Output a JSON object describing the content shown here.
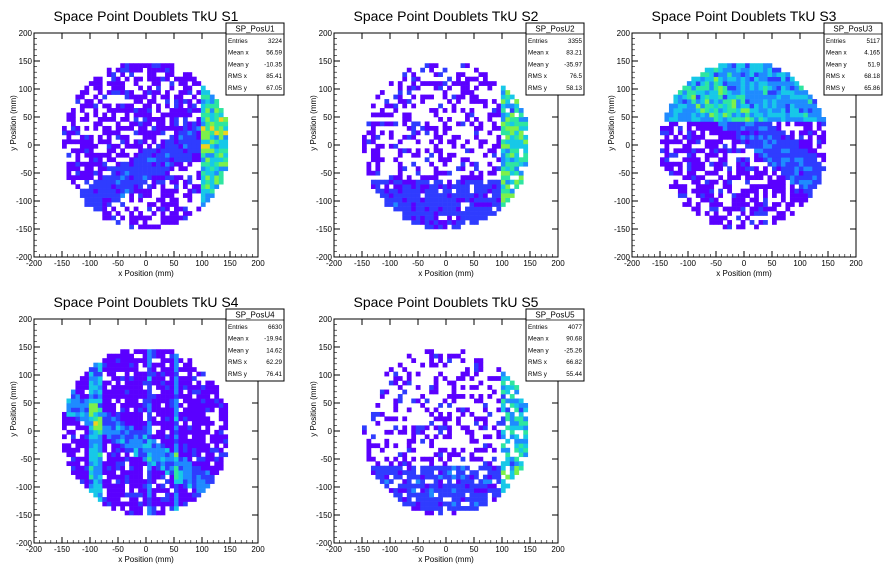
{
  "chart_data": [
    {
      "type": "heatmap",
      "title": "Space Point Doublets TkU S1",
      "xlabel": "x Position (mm)",
      "ylabel": "y Position (mm)",
      "xlim": [
        -200,
        200
      ],
      "ylim": [
        -200,
        200
      ],
      "xticks": [
        -200,
        -150,
        -100,
        -50,
        0,
        50,
        100,
        150,
        200
      ],
      "yticks": [
        -200,
        -150,
        -100,
        -50,
        0,
        50,
        100,
        150,
        200
      ],
      "stats": {
        "name": "SP_PosU1",
        "rows": [
          {
            "label": "Entries",
            "value": "3224"
          },
          {
            "label": "Mean x",
            "value": "56.59"
          },
          {
            "label": "Mean y",
            "value": "-10.35"
          },
          {
            "label": "RMS x",
            "value": "85.41"
          },
          {
            "label": "RMS y",
            "value": "67.05"
          }
        ]
      },
      "pattern": {
        "radius": 150,
        "occupancy": 0.6,
        "bands": [
          {
            "kind": "x",
            "lo": 95,
            "hi": 165,
            "weight": 6
          },
          {
            "kind": "diag",
            "slope": 0.6,
            "offset": -40,
            "width": 25,
            "weight": 1.5
          }
        ]
      }
    },
    {
      "type": "heatmap",
      "title": "Space Point Doublets TkU S2",
      "xlabel": "x Position (mm)",
      "ylabel": "y Position (mm)",
      "xlim": [
        -200,
        200
      ],
      "ylim": [
        -200,
        200
      ],
      "xticks": [
        -200,
        -150,
        -100,
        -50,
        0,
        50,
        100,
        150,
        200
      ],
      "yticks": [
        -200,
        -150,
        -100,
        -50,
        0,
        50,
        100,
        150,
        200
      ],
      "stats": {
        "name": "SP_PosU2",
        "rows": [
          {
            "label": "Entries",
            "value": "3355"
          },
          {
            "label": "Mean x",
            "value": "83.21"
          },
          {
            "label": "Mean y",
            "value": "-35.97"
          },
          {
            "label": "RMS x",
            "value": "76.5"
          },
          {
            "label": "RMS y",
            "value": "58.13"
          }
        ]
      },
      "pattern": {
        "radius": 150,
        "occupancy": 0.45,
        "bands": [
          {
            "kind": "x",
            "lo": 95,
            "hi": 165,
            "weight": 6
          },
          {
            "kind": "y",
            "lo": -160,
            "hi": -60,
            "weight": 1.2
          }
        ]
      }
    },
    {
      "type": "heatmap",
      "title": "Space Point Doublets TkU S3",
      "xlabel": "x Position (mm)",
      "ylabel": "y Position (mm)",
      "xlim": [
        -200,
        200
      ],
      "ylim": [
        -200,
        200
      ],
      "xticks": [
        -200,
        -150,
        -100,
        -50,
        0,
        50,
        100,
        150,
        200
      ],
      "yticks": [
        -200,
        -150,
        -100,
        -50,
        0,
        50,
        100,
        150,
        200
      ],
      "stats": {
        "name": "SP_PosU3",
        "rows": [
          {
            "label": "Entries",
            "value": "5117"
          },
          {
            "label": "Mean x",
            "value": "4.165"
          },
          {
            "label": "Mean y",
            "value": "51.9"
          },
          {
            "label": "RMS x",
            "value": "68.18"
          },
          {
            "label": "RMS y",
            "value": "65.86"
          }
        ]
      },
      "pattern": {
        "radius": 150,
        "occupancy": 0.6,
        "bands": [
          {
            "kind": "y",
            "lo": 40,
            "hi": 150,
            "weight": 4
          },
          {
            "kind": "diag",
            "slope": -0.8,
            "offset": 40,
            "width": 30,
            "weight": 2
          }
        ]
      }
    },
    {
      "type": "heatmap",
      "title": "Space Point Doublets TkU S4",
      "xlabel": "x Position (mm)",
      "ylabel": "y Position (mm)",
      "xlim": [
        -200,
        200
      ],
      "ylim": [
        -200,
        200
      ],
      "xticks": [
        -200,
        -150,
        -100,
        -50,
        0,
        50,
        100,
        150,
        200
      ],
      "yticks": [
        -200,
        -150,
        -100,
        -50,
        0,
        50,
        100,
        150,
        200
      ],
      "stats": {
        "name": "SP_PosU4",
        "rows": [
          {
            "label": "Entries",
            "value": "6630"
          },
          {
            "label": "Mean x",
            "value": "-19.94"
          },
          {
            "label": "Mean y",
            "value": "14.62"
          },
          {
            "label": "RMS x",
            "value": "62.29"
          },
          {
            "label": "RMS y",
            "value": "76.41"
          }
        ]
      },
      "pattern": {
        "radius": 150,
        "occupancy": 0.8,
        "bands": [
          {
            "kind": "x",
            "lo": -100,
            "hi": -80,
            "weight": 4
          },
          {
            "kind": "x",
            "lo": 0,
            "hi": 12,
            "weight": 3
          },
          {
            "kind": "x",
            "lo": 50,
            "hi": 60,
            "weight": 3
          },
          {
            "kind": "diag",
            "slope": -0.6,
            "offset": -30,
            "width": 20,
            "weight": 3
          }
        ]
      }
    },
    {
      "type": "heatmap",
      "title": "Space Point Doublets TkU S5",
      "xlabel": "x Position (mm)",
      "ylabel": "y Position (mm)",
      "xlim": [
        -200,
        200
      ],
      "ylim": [
        -200,
        200
      ],
      "xticks": [
        -200,
        -150,
        -100,
        -50,
        0,
        50,
        100,
        150,
        200
      ],
      "yticks": [
        -200,
        -150,
        -100,
        -50,
        0,
        50,
        100,
        150,
        200
      ],
      "stats": {
        "name": "SP_PosU5",
        "rows": [
          {
            "label": "Entries",
            "value": "4077"
          },
          {
            "label": "Mean x",
            "value": "90.68"
          },
          {
            "label": "Mean y",
            "value": "-25.26"
          },
          {
            "label": "RMS x",
            "value": "66.82"
          },
          {
            "label": "RMS y",
            "value": "55.44"
          }
        ]
      },
      "pattern": {
        "radius": 150,
        "occupancy": 0.35,
        "bands": [
          {
            "kind": "x",
            "lo": 95,
            "hi": 160,
            "weight": 5
          },
          {
            "kind": "y",
            "lo": -140,
            "hi": -60,
            "weight": 1.5
          }
        ]
      }
    }
  ],
  "colors": {
    "palette": [
      "#5a00ff",
      "#2f3cff",
      "#1f8bff",
      "#17c8e8",
      "#2ee6a0",
      "#7df04a",
      "#f0d21e",
      "#ff6a10",
      "#ff0a10"
    ],
    "axis": "#000000",
    "frame": "#000000"
  }
}
